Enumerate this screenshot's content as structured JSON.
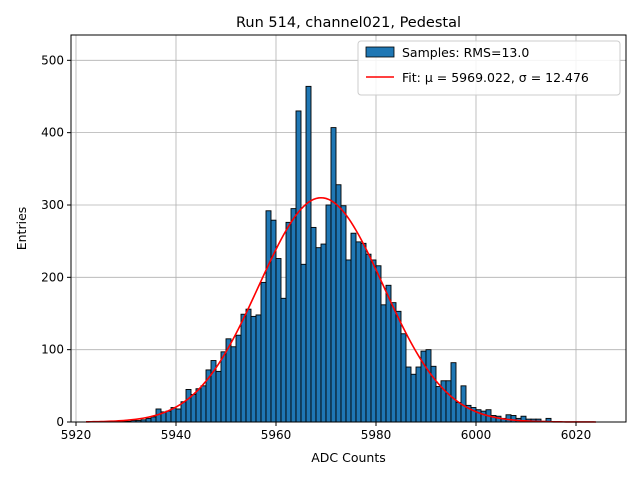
{
  "chart_data": {
    "type": "bar",
    "title": "Run 514, channel021, Pedestal",
    "xlabel": "ADC Counts",
    "ylabel": "Entries",
    "xlim": [
      5919,
      6030
    ],
    "ylim": [
      0,
      535
    ],
    "xticks": [
      5920,
      5940,
      5960,
      5980,
      6000,
      6020
    ],
    "yticks": [
      0,
      100,
      200,
      300,
      400,
      500
    ],
    "grid": true,
    "legend_position": "top-right",
    "legend": [
      {
        "kind": "bar",
        "label": "Samples: RMS=13.0"
      },
      {
        "kind": "line",
        "label": "Fit: μ = 5969.022, σ = 12.476"
      }
    ],
    "colors": {
      "bars": "#1f77b4",
      "bar_edge": "#000000",
      "fit": "#ff0000",
      "grid": "#b0b0b0"
    },
    "bin_width": 1,
    "bins": [
      [
        5929,
        1
      ],
      [
        5930,
        1
      ],
      [
        5931,
        2
      ],
      [
        5932,
        2
      ],
      [
        5933,
        3
      ],
      [
        5934,
        5
      ],
      [
        5935,
        7
      ],
      [
        5936,
        18
      ],
      [
        5937,
        14
      ],
      [
        5938,
        15
      ],
      [
        5939,
        20
      ],
      [
        5940,
        18
      ],
      [
        5941,
        28
      ],
      [
        5942,
        45
      ],
      [
        5943,
        38
      ],
      [
        5944,
        46
      ],
      [
        5945,
        50
      ],
      [
        5946,
        72
      ],
      [
        5947,
        85
      ],
      [
        5948,
        70
      ],
      [
        5949,
        97
      ],
      [
        5950,
        115
      ],
      [
        5951,
        104
      ],
      [
        5952,
        120
      ],
      [
        5953,
        149
      ],
      [
        5954,
        156
      ],
      [
        5955,
        146
      ],
      [
        5956,
        148
      ],
      [
        5957,
        193
      ],
      [
        5958,
        292
      ],
      [
        5959,
        279
      ],
      [
        5960,
        226
      ],
      [
        5961,
        171
      ],
      [
        5962,
        276
      ],
      [
        5963,
        295
      ],
      [
        5964,
        430
      ],
      [
        5965,
        218
      ],
      [
        5966,
        464
      ],
      [
        5967,
        269
      ],
      [
        5968,
        241
      ],
      [
        5969,
        246
      ],
      [
        5970,
        300
      ],
      [
        5971,
        407
      ],
      [
        5972,
        328
      ],
      [
        5973,
        299
      ],
      [
        5974,
        224
      ],
      [
        5975,
        261
      ],
      [
        5976,
        249
      ],
      [
        5977,
        247
      ],
      [
        5978,
        232
      ],
      [
        5979,
        224
      ],
      [
        5980,
        216
      ],
      [
        5981,
        162
      ],
      [
        5982,
        189
      ],
      [
        5983,
        165
      ],
      [
        5984,
        153
      ],
      [
        5985,
        122
      ],
      [
        5986,
        76
      ],
      [
        5987,
        66
      ],
      [
        5988,
        76
      ],
      [
        5989,
        98
      ],
      [
        5990,
        100
      ],
      [
        5991,
        77
      ],
      [
        5992,
        49
      ],
      [
        5993,
        57
      ],
      [
        5994,
        57
      ],
      [
        5995,
        82
      ],
      [
        5996,
        27
      ],
      [
        5997,
        50
      ],
      [
        5998,
        23
      ],
      [
        5999,
        20
      ],
      [
        6000,
        17
      ],
      [
        6001,
        15
      ],
      [
        6002,
        17
      ],
      [
        6003,
        9
      ],
      [
        6004,
        8
      ],
      [
        6005,
        5
      ],
      [
        6006,
        10
      ],
      [
        6007,
        9
      ],
      [
        6008,
        5
      ],
      [
        6009,
        8
      ],
      [
        6010,
        4
      ],
      [
        6011,
        4
      ],
      [
        6012,
        4
      ],
      [
        6013,
        1
      ],
      [
        6014,
        5
      ]
    ],
    "fit": {
      "mu": 5969.022,
      "sigma": 12.476,
      "amplitude": 310,
      "x_range": [
        5922,
        6024
      ]
    }
  }
}
